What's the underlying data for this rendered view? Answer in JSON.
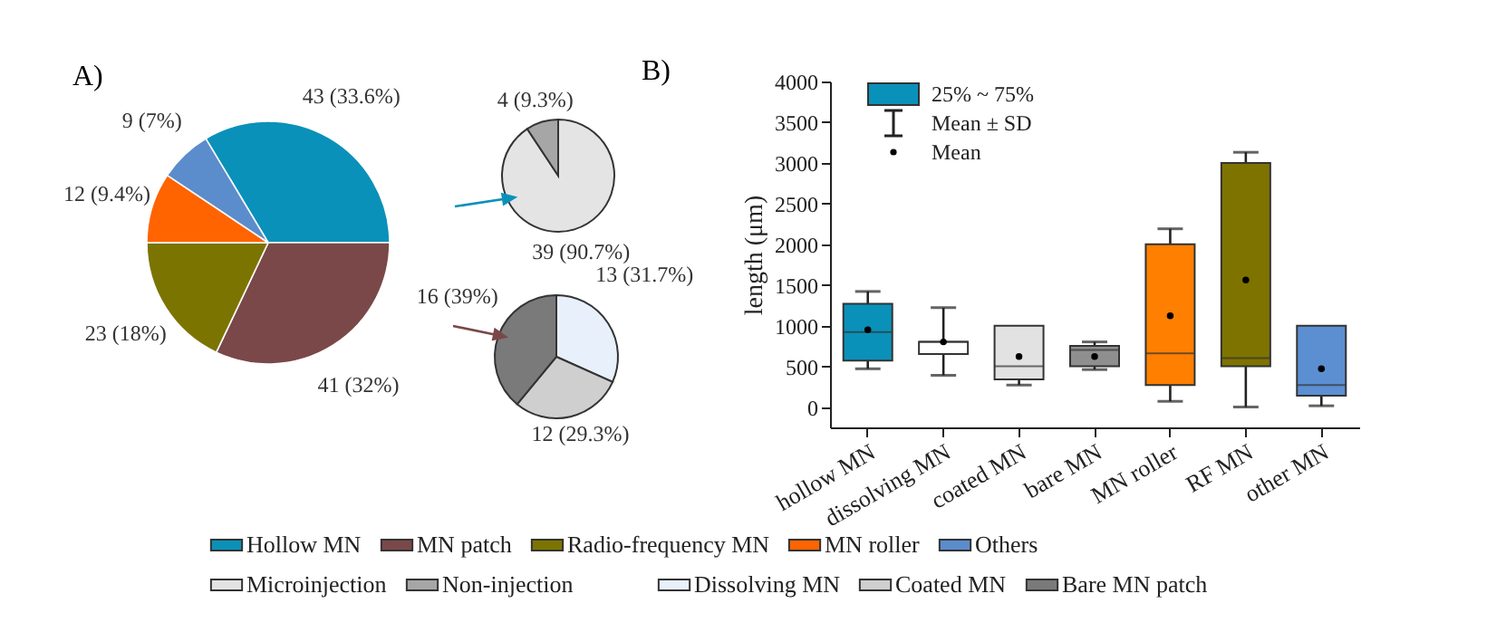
{
  "chart_data": [
    {
      "type": "pie",
      "title": "A)",
      "categories": [
        "Hollow MN",
        "MN patch",
        "Radio-frequency MN",
        "MN roller",
        "Others"
      ],
      "values": [
        43,
        41,
        23,
        12,
        9
      ],
      "colors": [
        "#0a91b9",
        "#7a4848",
        "#7c7400",
        "#ff6400",
        "#5b8ccc"
      ],
      "value_labels": [
        "43 (33.6%)",
        "41 (32%)",
        "23 (18%)",
        "12 (9.4%)",
        "9 (7%)"
      ],
      "legend": "bottom"
    },
    {
      "type": "pie",
      "categories": [
        "Microinjection",
        "Non-injection"
      ],
      "values": [
        39,
        4
      ],
      "colors": [
        "#e4e4e4",
        "#a6a6a6"
      ],
      "value_labels": [
        "39 (90.7%)",
        "4 (9.3%)"
      ],
      "legend": "bottom"
    },
    {
      "type": "pie",
      "categories": [
        "Dissolving MN",
        "Coated MN",
        "Bare MN patch"
      ],
      "values": [
        13,
        12,
        16
      ],
      "colors": [
        "#e8f0fb",
        "#cfcfcf",
        "#7a7a7a"
      ],
      "value_labels": [
        "13 (31.7%)",
        "12 (29.3%)",
        "16 (39%)"
      ],
      "legend": "bottom"
    },
    {
      "type": "box",
      "title": "B)",
      "ylabel": "length (μm)",
      "categories": [
        "hollow MN",
        "dissolving MN",
        "coated MN",
        "bare MN",
        "MN roller",
        "RF MN",
        "other MN"
      ],
      "boxes": [
        {
          "low": 470,
          "q1": 570,
          "median": 920,
          "q3": 1270,
          "high": 1420,
          "mean": 950
        },
        {
          "low": 390,
          "q1": 650,
          "median": 800,
          "q3": 800,
          "high": 1220,
          "mean": 800
        },
        {
          "low": 270,
          "q1": 340,
          "median": 500,
          "q3": 1000,
          "high": 970,
          "mean": 620
        },
        {
          "low": 460,
          "q1": 500,
          "median": 700,
          "q3": 750,
          "high": 800,
          "mean": 620
        },
        {
          "low": 70,
          "q1": 270,
          "median": 660,
          "q3": 2000,
          "high": 2190,
          "mean": 1120
        },
        {
          "low": 0,
          "q1": 500,
          "median": 600,
          "q3": 3000,
          "high": 3130,
          "mean": 1560
        },
        {
          "low": 15,
          "q1": 140,
          "median": 270,
          "q3": 1000,
          "high": 940,
          "mean": 470
        }
      ],
      "colors": [
        "#0a91b9",
        "#ffffff",
        "#e2e2e2",
        "#8f8f8f",
        "#ff7f00",
        "#7f7300",
        "#5b8fd2"
      ],
      "ylim": [
        -250,
        4000
      ],
      "yticks": [
        0,
        500,
        1000,
        1500,
        2000,
        2500,
        3000,
        3500,
        4000
      ],
      "annotations": [
        "25% ~ 75%",
        "Mean ± SD",
        "Mean"
      ]
    }
  ]
}
